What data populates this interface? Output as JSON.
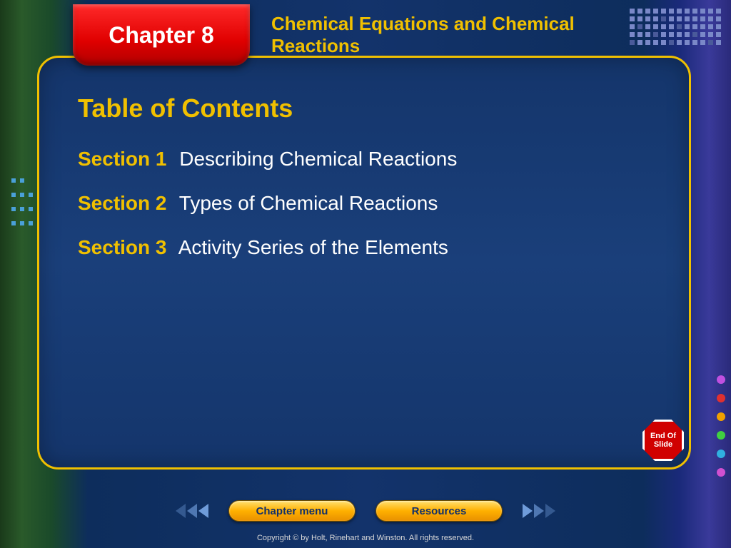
{
  "chapter_tab": "Chapter 8",
  "chapter_subtitle": "Chemical Equations and Chemical Reactions",
  "toc_title": "Table of Contents",
  "sections": [
    {
      "label": "Section 1",
      "title": "Describing Chemical Reactions"
    },
    {
      "label": "Section 2",
      "title": "Types of Chemical Reactions"
    },
    {
      "label": "Section 3",
      "title": "Activity Series of the Elements"
    }
  ],
  "stop_sign": "End Of Slide",
  "nav": {
    "chapter_menu": "Chapter menu",
    "resources": "Resources"
  },
  "copyright": "Copyright © by Holt, Rinehart and Winston. All rights reserved.",
  "colors": {
    "accent_yellow": "#f0c000",
    "panel_bg": "#14356b",
    "tab_red": "#e00000",
    "text_white": "#ffffff",
    "right_dots": [
      "#c050e0",
      "#e03030",
      "#f0a000",
      "#40d040",
      "#30b0e0",
      "#d050d0"
    ]
  },
  "typography": {
    "title_fontsize": 36,
    "section_fontsize": 28,
    "tab_fontsize": 32,
    "subtitle_fontsize": 26
  }
}
